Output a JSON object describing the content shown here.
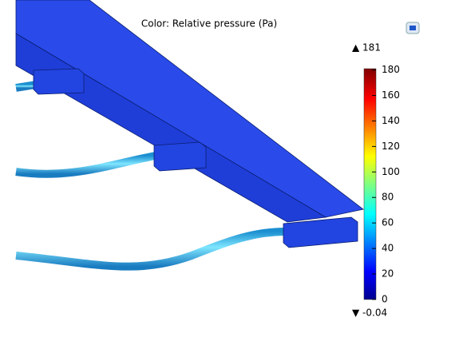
{
  "title": "Color: Relative pressure (Pa)",
  "colorbar": {
    "lim": [
      -0.04,
      181
    ],
    "ticks": [
      0,
      20,
      40,
      60,
      80,
      100,
      120,
      140,
      160,
      180
    ],
    "max_label": "▲ 181",
    "min_label": "▼ -0.04"
  }
}
